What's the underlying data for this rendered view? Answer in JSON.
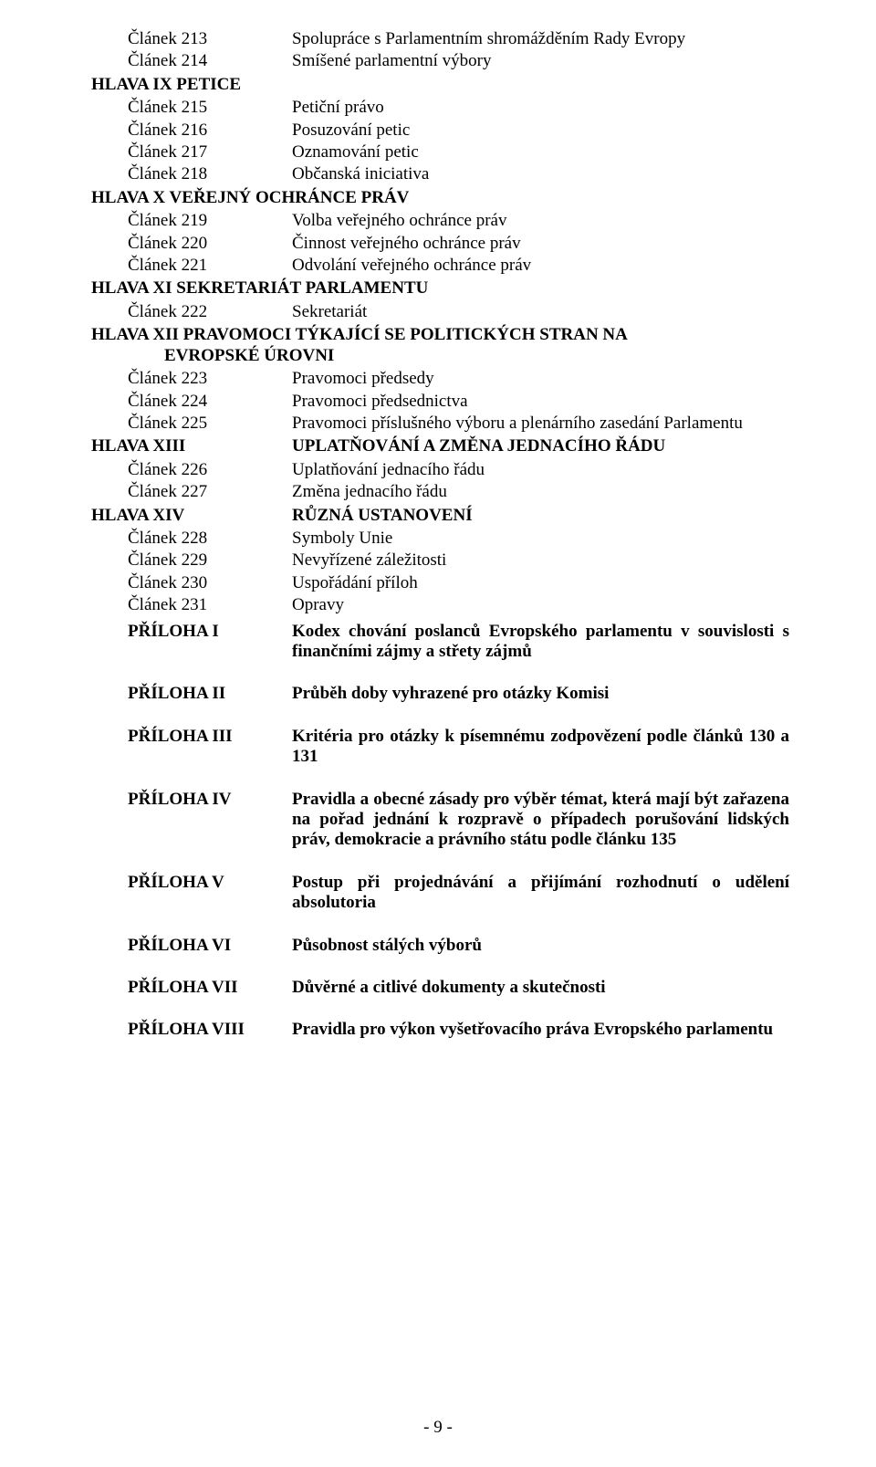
{
  "colors": {
    "background": "#ffffff",
    "text": "#000000"
  },
  "typography": {
    "font_family": "Times New Roman",
    "base_size_pt": 14
  },
  "sections": [
    {
      "heading": null,
      "items": [
        {
          "left": "Článek  213",
          "right": "Spolupráce s Parlamentním shromážděním Rady Evropy"
        },
        {
          "left": "Článek  214",
          "right": "Smíšené parlamentní výbory"
        }
      ]
    },
    {
      "heading": "HLAVA  IX   PETICE",
      "items": [
        {
          "left": "Článek  215",
          "right": "Petiční právo"
        },
        {
          "left": "Článek  216",
          "right": "Posuzování petic"
        },
        {
          "left": "Článek  217",
          "right": "Oznamování petic"
        },
        {
          "left": "Článek  218",
          "right": "Občanská iniciativa"
        }
      ]
    },
    {
      "heading": "HLAVA  X   VEŘEJNÝ OCHRÁNCE PRÁV",
      "items": [
        {
          "left": "Článek  219",
          "right": "Volba veřejného ochránce práv"
        },
        {
          "left": "Článek  220",
          "right": "Činnost veřejného ochránce práv"
        },
        {
          "left": "Článek  221",
          "right": "Odvolání veřejného ochránce práv"
        }
      ]
    },
    {
      "heading": "HLAVA  XI   SEKRETARIÁT PARLAMENTU",
      "items": [
        {
          "left": "Článek  222",
          "right": "Sekretariát"
        }
      ]
    },
    {
      "heading_wrap": {
        "line1": "HLAVA XII PRAVOMOCI  TÝKAJÍCÍ  SE  POLITICKÝCH  STRAN  NA",
        "line2": "EVROPSKÉ ÚROVNI"
      },
      "items": [
        {
          "left": "Článek  223",
          "right": "Pravomoci předsedy"
        },
        {
          "left": "Článek  224",
          "right": "Pravomoci předsednictva"
        },
        {
          "left": "Článek  225",
          "right": "Pravomoci  příslušného  výboru  a  plenárního  zasedání Parlamentu"
        }
      ]
    },
    {
      "heading_row": {
        "left": "HLAVA  XIII",
        "right": "UPLATŇOVÁNÍ A ZMĚNA JEDNACÍHO ŘÁDU"
      },
      "items": [
        {
          "left": "Článek  226",
          "right": "Uplatňování jednacího řádu"
        },
        {
          "left": "Článek  227",
          "right": "Změna jednacího řádu"
        }
      ]
    },
    {
      "heading_row": {
        "left": "HLAVA  XIV",
        "right": "RŮZNÁ USTANOVENÍ"
      },
      "items": [
        {
          "left": "Článek  228",
          "right": "Symboly Unie"
        },
        {
          "left": "Článek  229",
          "right": "Nevyřízené záležitosti"
        },
        {
          "left": "Článek  230",
          "right": "Uspořádání příloh"
        },
        {
          "left": "Článek  231",
          "right": "Opravy"
        }
      ]
    }
  ],
  "annexes": [
    {
      "left": "PŘÍLOHA  I",
      "right": "Kodex  chování  poslanců  Evropského  parlamentu v souvislosti s finančními zájmy a střety zájmů"
    },
    {
      "left": "PŘÍLOHA  II",
      "right": "Průběh doby vyhrazené pro otázky Komisi"
    },
    {
      "left": "PŘÍLOHA  III",
      "right": "Kritéria pro otázky k písemnému zodpovězení podle článků 130 a 131"
    },
    {
      "left": "PŘÍLOHA  IV",
      "right": "Pravidla a obecné zásady pro výběr témat, která mají být zařazena  na  pořad  jednání  k rozpravě  o  případech porušování lidských práv, demokracie a právního státu podle článku 135"
    },
    {
      "left": "PŘÍLOHA  V",
      "right": "Postup při projednávání a přijímání rozhodnutí o udělení absolutoria"
    },
    {
      "left": "PŘÍLOHA  VI",
      "right": "Působnost stálých výborů"
    },
    {
      "left": "PŘÍLOHA  VII",
      "right": "Důvěrné a citlivé dokumenty a skutečnosti"
    },
    {
      "left": "PŘÍLOHA  VIII",
      "right": "Pravidla pro výkon vyšetřovacího práva Evropského parlamentu"
    }
  ],
  "footer": "- 9 -"
}
